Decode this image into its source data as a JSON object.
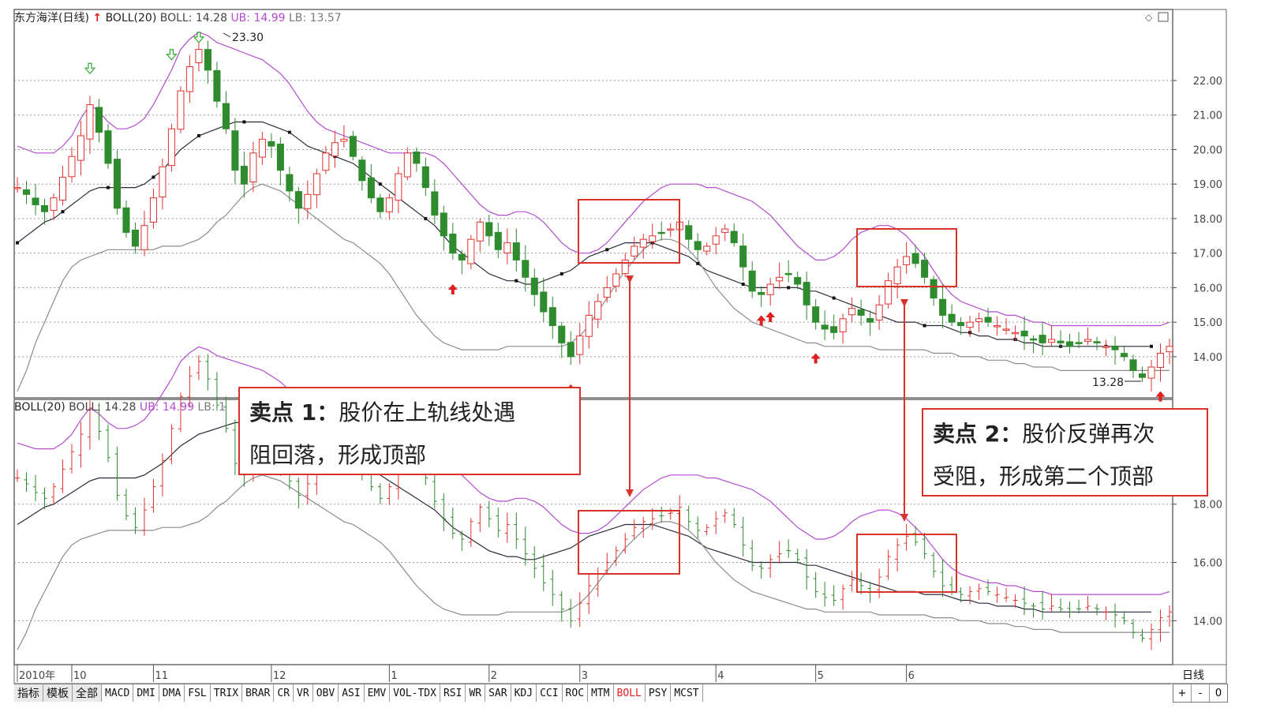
{
  "header": {
    "stock_name": "东方海洋(日线)",
    "up_arrow": "↑",
    "boll_label": "BOLL(20)",
    "boll_value": "BOLL: 14.28",
    "ub_value": "UB: 14.99",
    "lb_value": "LB: 13.57"
  },
  "lower_header": {
    "boll_label": "BOLL(20)",
    "boll_value": "BOLL: 14.28",
    "ub_value": "UB: 14.99",
    "lb_value": "LB: 1"
  },
  "annotations": {
    "box1_bold": "卖点 1：",
    "box1_text_a": "股价在上轨线处遇",
    "box1_text_b": "阻回落，形成顶部",
    "box2_bold": "卖点 2：",
    "box2_text_a": "股价反弹再次",
    "box2_text_b": "受阻，形成第二个顶部"
  },
  "period_label": "日线",
  "tabs": [
    "指标",
    "模板",
    "全部",
    "MACD",
    "DMI",
    "DMA",
    "FSL",
    "TRIX",
    "BRAR",
    "CR",
    "VR",
    "OBV",
    "ASI",
    "EMV",
    "VOL-TDX",
    "RSI",
    "WR",
    "SAR",
    "KDJ",
    "CCI",
    "ROC",
    "MTM",
    "BOLL",
    "PSY",
    "MCST"
  ],
  "active_tab": "BOLL",
  "controls": [
    "+",
    "-",
    "0"
  ],
  "colors": {
    "up": "#e0332f",
    "down": "#2e8b2e",
    "ub": "#b34ccf",
    "mid": "#2b2b3b",
    "lb": "#8c8c8c",
    "box": "#d9342b",
    "arrow_up": "#e02020",
    "arrow_down": "#33aa33"
  },
  "chart_data": [
    {
      "type": "candlestick",
      "title": "东方海洋(日线)",
      "indicator": "BOLL(20)",
      "x_ticks": [
        "2010年",
        "10",
        "11",
        "12",
        "1",
        "2",
        "3",
        "4",
        "5",
        "6"
      ],
      "y_ticks": [
        14,
        15,
        16,
        17,
        18,
        19,
        20,
        21,
        22
      ],
      "ylim": [
        12.9,
        23.6
      ],
      "grid": true,
      "annotations_on_chart": [
        "23.30",
        "13.28"
      ],
      "price_path": [
        18.9,
        18.7,
        18.4,
        18.2,
        18.6,
        19.2,
        19.8,
        20.4,
        21.3,
        20.5,
        19.6,
        18.3,
        17.6,
        17.2,
        17.8,
        18.6,
        19.5,
        20.6,
        21.7,
        22.4,
        22.9,
        22.3,
        21.4,
        20.6,
        19.4,
        19.0,
        19.9,
        20.3,
        20.1,
        19.4,
        18.8,
        18.3,
        18.7,
        19.3,
        19.9,
        20.2,
        20.3,
        19.8,
        19.1,
        18.6,
        18.2,
        18.6,
        19.3,
        19.9,
        19.6,
        18.9,
        18.1,
        17.5,
        17.0,
        16.8,
        17.4,
        17.9,
        17.5,
        17.1,
        17.3,
        16.8,
        16.3,
        15.8,
        15.3,
        14.9,
        14.4,
        14.0,
        14.6,
        15.2,
        15.6,
        16.0,
        16.4,
        16.8,
        17.2,
        17.4,
        17.5,
        17.6,
        17.7,
        17.9,
        17.4,
        17.1,
        17.2,
        17.5,
        17.7,
        17.3,
        16.6,
        15.9,
        15.8,
        16.1,
        16.3,
        16.4,
        16.1,
        15.5,
        15.0,
        14.8,
        14.7,
        15.1,
        15.4,
        15.2,
        15.0,
        15.5,
        16.2,
        16.6,
        16.9,
        16.7,
        16.3,
        15.7,
        15.2,
        15.0,
        14.9,
        15.0,
        15.1,
        15.0,
        14.9,
        14.8,
        14.7,
        14.6,
        14.5,
        14.4,
        14.5,
        14.4,
        14.3,
        14.4,
        14.5,
        14.4,
        14.3,
        14.2,
        14.0,
        13.6,
        13.4,
        13.7,
        14.1,
        14.3
      ],
      "ub_path": [
        20.1,
        20.0,
        19.9,
        19.9,
        19.9,
        20.1,
        20.4,
        20.9,
        21.3,
        21.1,
        20.8,
        20.6,
        20.6,
        20.7,
        20.9,
        21.3,
        21.8,
        22.3,
        22.9,
        23.2,
        23.4,
        23.3,
        23.1,
        23.0,
        22.9,
        22.8,
        22.7,
        22.6,
        22.4,
        22.2,
        21.9,
        21.5,
        21.1,
        20.8,
        20.6,
        20.5,
        20.4,
        20.3,
        20.2,
        20.1,
        20.0,
        19.9,
        19.9,
        19.9,
        19.9,
        19.9,
        19.8,
        19.6,
        19.3,
        19.0,
        18.7,
        18.4,
        18.2,
        18.1,
        18.1,
        18.2,
        18.2,
        18.1,
        17.9,
        17.6,
        17.3,
        17.1,
        17.0,
        17.0,
        17.1,
        17.3,
        17.6,
        17.9,
        18.2,
        18.5,
        18.7,
        18.9,
        19.0,
        19.0,
        19.0,
        19.0,
        18.9,
        18.9,
        18.8,
        18.7,
        18.6,
        18.5,
        18.3,
        18.1,
        17.8,
        17.5,
        17.2,
        17.0,
        16.8,
        16.8,
        16.9,
        17.1,
        17.4,
        17.6,
        17.7,
        17.8,
        17.8,
        17.7,
        17.5,
        17.2,
        16.9,
        16.5,
        16.1,
        15.8,
        15.6,
        15.5,
        15.4,
        15.3,
        15.3,
        15.2,
        15.2,
        15.1,
        15.0,
        15.0,
        14.9,
        14.9,
        14.9,
        14.9,
        14.9,
        14.9,
        14.9,
        14.9,
        14.9,
        14.9,
        14.9,
        14.9,
        14.9,
        15.0
      ],
      "mid_path": [
        17.3,
        17.5,
        17.7,
        17.9,
        18.0,
        18.2,
        18.4,
        18.6,
        18.8,
        18.9,
        18.9,
        18.9,
        18.9,
        18.9,
        19.0,
        19.2,
        19.4,
        19.7,
        20.0,
        20.2,
        20.4,
        20.5,
        20.6,
        20.7,
        20.8,
        20.8,
        20.8,
        20.8,
        20.7,
        20.6,
        20.5,
        20.3,
        20.1,
        20.0,
        19.9,
        19.8,
        19.7,
        19.6,
        19.4,
        19.2,
        19.0,
        18.8,
        18.6,
        18.4,
        18.2,
        18.0,
        17.8,
        17.5,
        17.2,
        17.0,
        16.8,
        16.6,
        16.4,
        16.3,
        16.2,
        16.2,
        16.1,
        16.1,
        16.2,
        16.3,
        16.4,
        16.5,
        16.7,
        16.9,
        17.0,
        17.1,
        17.2,
        17.3,
        17.3,
        17.3,
        17.3,
        17.2,
        17.1,
        17.0,
        16.9,
        16.7,
        16.5,
        16.4,
        16.3,
        16.2,
        16.1,
        16.0,
        16.0,
        16.0,
        16.0,
        16.0,
        16.0,
        15.9,
        15.9,
        15.8,
        15.7,
        15.6,
        15.5,
        15.4,
        15.3,
        15.2,
        15.1,
        15.0,
        15.0,
        15.0,
        14.9,
        14.9,
        14.9,
        14.8,
        14.7,
        14.7,
        14.6,
        14.6,
        14.5,
        14.5,
        14.5,
        14.4,
        14.4,
        14.3,
        14.3,
        14.3,
        14.3,
        14.3,
        14.3,
        14.3,
        14.3,
        14.3,
        14.3,
        14.3,
        14.3,
        14.3
      ],
      "lb_path": [
        13.0,
        13.6,
        14.4,
        15.0,
        15.6,
        16.2,
        16.6,
        16.8,
        16.9,
        17.0,
        17.1,
        17.1,
        17.1,
        17.1,
        17.1,
        17.1,
        17.2,
        17.2,
        17.2,
        17.3,
        17.4,
        17.6,
        17.9,
        18.1,
        18.4,
        18.7,
        18.9,
        19.0,
        18.9,
        18.8,
        18.6,
        18.4,
        18.2,
        18.0,
        17.8,
        17.6,
        17.4,
        17.3,
        17.1,
        16.9,
        16.7,
        16.4,
        16.0,
        15.6,
        15.2,
        14.9,
        14.6,
        14.4,
        14.3,
        14.2,
        14.2,
        14.2,
        14.2,
        14.2,
        14.3,
        14.3,
        14.3,
        14.3,
        14.3,
        14.3,
        14.3,
        14.4,
        14.6,
        14.9,
        15.3,
        15.7,
        16.1,
        16.5,
        16.8,
        17.1,
        17.3,
        17.4,
        17.4,
        17.3,
        17.1,
        16.8,
        16.4,
        16.0,
        15.7,
        15.4,
        15.2,
        15.0,
        14.9,
        14.8,
        14.7,
        14.6,
        14.5,
        14.4,
        14.4,
        14.3,
        14.3,
        14.3,
        14.3,
        14.3,
        14.3,
        14.2,
        14.2,
        14.2,
        14.2,
        14.2,
        14.2,
        14.1,
        14.1,
        14.1,
        14.0,
        14.0,
        14.0,
        13.9,
        13.9,
        13.9,
        13.8,
        13.8,
        13.7,
        13.7,
        13.7,
        13.6,
        13.6,
        13.6,
        13.6,
        13.6,
        13.6,
        13.6,
        13.6,
        13.6,
        13.6,
        13.6,
        13.6,
        13.6
      ]
    },
    {
      "type": "candlestick",
      "indicator": "BOLL(20)",
      "y_ticks": [
        14,
        16,
        18
      ],
      "ylim": [
        12.6,
        21.0
      ],
      "grid": true
    }
  ]
}
